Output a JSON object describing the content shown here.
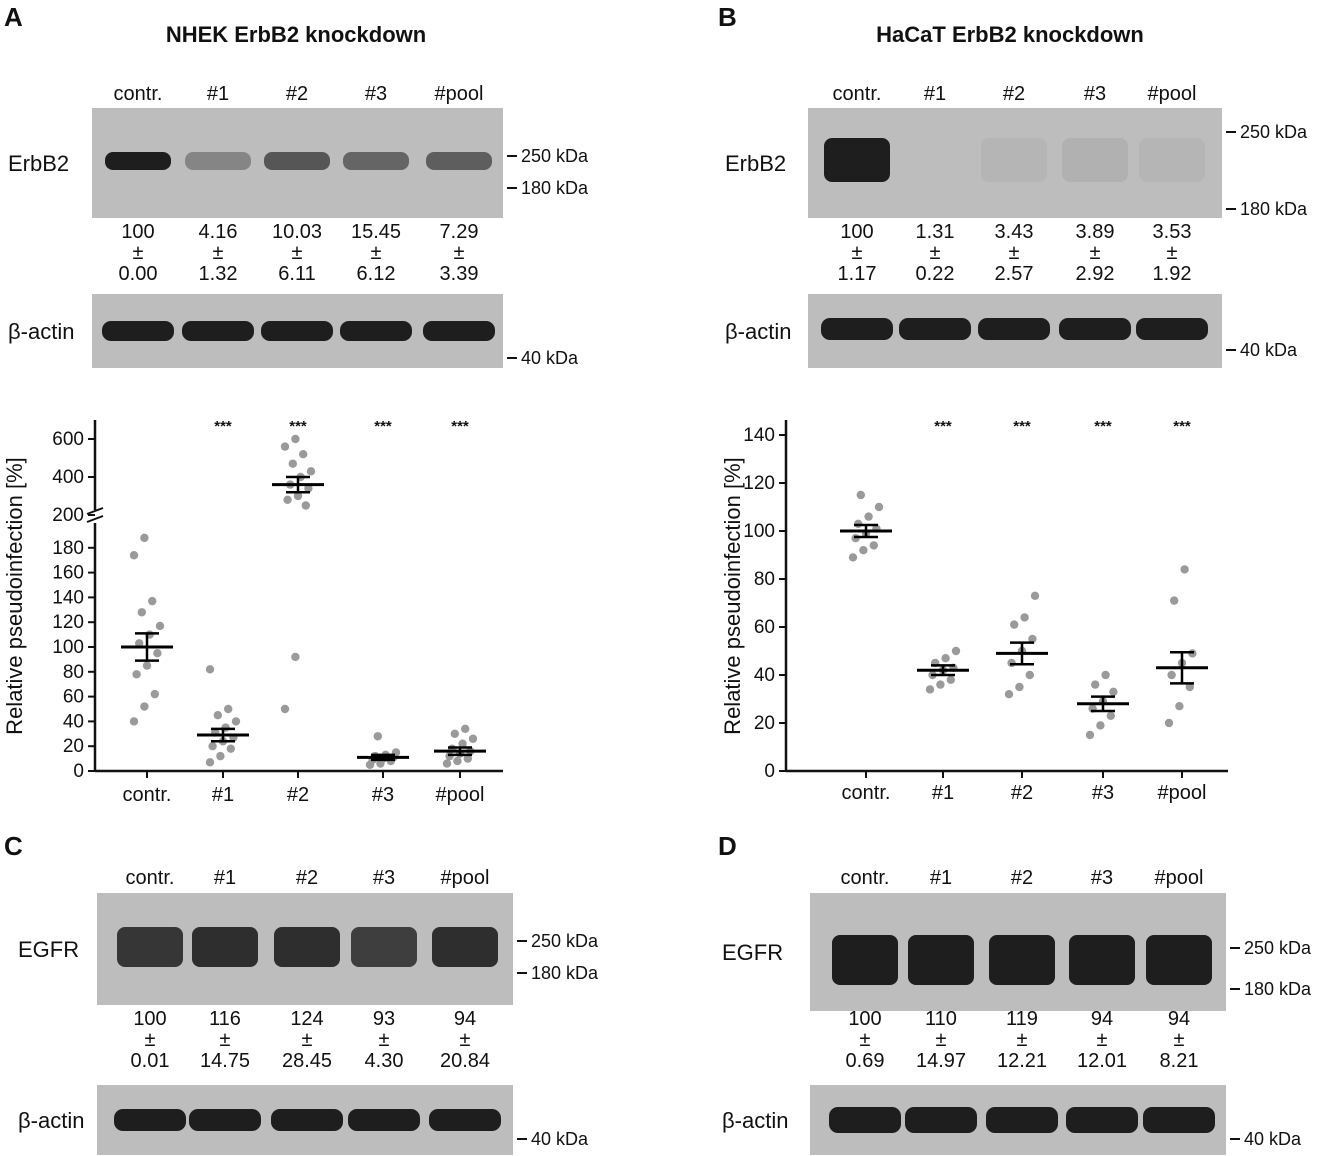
{
  "colors": {
    "blot_background": "#bdbdbd",
    "band": "#1e1e1e",
    "dot": "#9a9a9a",
    "mean_bar": "#000000",
    "text": "#111111"
  },
  "panels": {
    "A": {
      "letter": "A",
      "title": "NHEK  ErbB2 knockdown",
      "lanes": [
        "contr.",
        "#1",
        "#2",
        "#3",
        "#pool"
      ],
      "blot1": {
        "protein": "ErbB2",
        "markers": [
          "250 kDa",
          "180 kDa"
        ],
        "band_intensity": [
          1.0,
          0.35,
          0.65,
          0.55,
          0.6
        ],
        "quant": [
          {
            "mean": "100",
            "pm": "±",
            "sd": "0.00"
          },
          {
            "mean": "4.16",
            "pm": "±",
            "sd": "1.32"
          },
          {
            "mean": "10.03",
            "pm": "±",
            "sd": "6.11"
          },
          {
            "mean": "15.45",
            "pm": "±",
            "sd": "6.12"
          },
          {
            "mean": "7.29",
            "pm": "±",
            "sd": "3.39"
          }
        ]
      },
      "blot2": {
        "protein": "β-actin",
        "markers": [
          "40 kDa"
        ],
        "band_intensity": [
          1.0,
          1.0,
          1.0,
          1.0,
          1.0
        ]
      }
    },
    "B": {
      "letter": "B",
      "title": "HaCaT  ErbB2 knockdown",
      "lanes": [
        "contr.",
        "#1",
        "#2",
        "#3",
        "#pool"
      ],
      "blot1": {
        "protein": "ErbB2",
        "markers": [
          "250 kDa",
          "180 kDa"
        ],
        "band_intensity": [
          1.0,
          0.0,
          0.05,
          0.07,
          0.05
        ],
        "quant": [
          {
            "mean": "100",
            "pm": "±",
            "sd": "1.17"
          },
          {
            "mean": "1.31",
            "pm": "±",
            "sd": "0.22"
          },
          {
            "mean": "3.43",
            "pm": "±",
            "sd": "2.57"
          },
          {
            "mean": "3.89",
            "pm": "±",
            "sd": "2.92"
          },
          {
            "mean": "3.53",
            "pm": "±",
            "sd": "1.92"
          }
        ]
      },
      "blot2": {
        "protein": "β-actin",
        "markers": [
          "40 kDa"
        ],
        "band_intensity": [
          1.0,
          1.0,
          1.0,
          1.0,
          1.0
        ]
      }
    },
    "C": {
      "letter": "C",
      "lanes": [
        "contr.",
        "#1",
        "#2",
        "#3",
        "#pool"
      ],
      "blot1": {
        "protein": "EGFR",
        "markers": [
          "250 kDa",
          "180 kDa"
        ],
        "band_intensity": [
          0.85,
          0.9,
          0.9,
          0.8,
          0.9
        ],
        "quant": [
          {
            "mean": "100",
            "pm": "±",
            "sd": "0.01"
          },
          {
            "mean": "116",
            "pm": "±",
            "sd": "14.75"
          },
          {
            "mean": "124",
            "pm": "±",
            "sd": "28.45"
          },
          {
            "mean": "93",
            "pm": "±",
            "sd": "4.30"
          },
          {
            "mean": "94",
            "pm": "±",
            "sd": "20.84"
          }
        ]
      },
      "blot2": {
        "protein": "β-actin",
        "markers": [
          "40 kDa"
        ],
        "band_intensity": [
          1.0,
          1.0,
          1.0,
          1.0,
          1.0
        ]
      }
    },
    "D": {
      "letter": "D",
      "lanes": [
        "contr.",
        "#1",
        "#2",
        "#3",
        "#pool"
      ],
      "blot1": {
        "protein": "EGFR",
        "markers": [
          "250 kDa",
          "180 kDa"
        ],
        "band_intensity": [
          1.0,
          1.0,
          1.0,
          1.0,
          1.0
        ],
        "quant": [
          {
            "mean": "100",
            "pm": "±",
            "sd": "0.69"
          },
          {
            "mean": "110",
            "pm": "±",
            "sd": "14.97"
          },
          {
            "mean": "119",
            "pm": "±",
            "sd": "12.21"
          },
          {
            "mean": "94",
            "pm": "±",
            "sd": "12.01"
          },
          {
            "mean": "94",
            "pm": "±",
            "sd": "8.21"
          }
        ]
      },
      "blot2": {
        "protein": "β-actin",
        "markers": [
          "40 kDa"
        ],
        "band_intensity": [
          1.0,
          1.0,
          1.0,
          1.0,
          1.0
        ]
      }
    }
  },
  "chart_data": [
    {
      "panel": "A",
      "type": "scatter",
      "ylabel": "Relative pseudoinfection [%]",
      "categories": [
        "contr.",
        "#1",
        "#2",
        "#3",
        "#pool"
      ],
      "significance": [
        "",
        "***",
        "***",
        "***",
        "***"
      ],
      "broken_axis": true,
      "lower_ylim": [
        0,
        200
      ],
      "lower_ticks": [
        0,
        20,
        40,
        60,
        80,
        100,
        120,
        140,
        160,
        180
      ],
      "upper_ylim": [
        200,
        700
      ],
      "upper_ticks": [
        200,
        400,
        600
      ],
      "groups": [
        {
          "category": "contr.",
          "mean": 100,
          "sem": 11,
          "points": [
            40,
            52,
            62,
            78,
            85,
            95,
            103,
            110,
            117,
            128,
            137,
            174,
            188
          ]
        },
        {
          "category": "#1",
          "mean": 29,
          "sem": 5,
          "points": [
            7,
            12,
            18,
            20,
            24,
            27,
            31,
            35,
            40,
            45,
            50,
            82
          ]
        },
        {
          "category": "#2",
          "mean": 360,
          "sem": 40,
          "points": [
            50,
            92,
            250,
            280,
            300,
            340,
            360,
            400,
            430,
            470,
            520,
            560,
            600
          ]
        },
        {
          "category": "#3",
          "mean": 11,
          "sem": 2,
          "points": [
            5,
            6,
            8,
            9,
            10,
            11,
            12,
            13,
            15,
            28
          ]
        },
        {
          "category": "#pool",
          "mean": 16,
          "sem": 3,
          "points": [
            6,
            8,
            10,
            12,
            14,
            16,
            18,
            22,
            26,
            30,
            34
          ]
        }
      ]
    },
    {
      "panel": "B",
      "type": "scatter",
      "ylabel": "Relative pseudoinfection [%]",
      "categories": [
        "contr.",
        "#1",
        "#2",
        "#3",
        "#pool"
      ],
      "significance": [
        "",
        "***",
        "***",
        "***",
        "***"
      ],
      "ylim": [
        0,
        145
      ],
      "ticks": [
        0,
        20,
        40,
        60,
        80,
        100,
        120,
        140
      ],
      "groups": [
        {
          "category": "contr.",
          "mean": 100,
          "sem": 2.5,
          "points": [
            89,
            92,
            94,
            97,
            99,
            101,
            103,
            106,
            110,
            115
          ]
        },
        {
          "category": "#1",
          "mean": 42,
          "sem": 2,
          "points": [
            34,
            36,
            38,
            40,
            42,
            43,
            45,
            47,
            50
          ]
        },
        {
          "category": "#2",
          "mean": 49,
          "sem": 4.5,
          "points": [
            32,
            35,
            40,
            45,
            50,
            55,
            61,
            64,
            73
          ]
        },
        {
          "category": "#3",
          "mean": 28,
          "sem": 3,
          "points": [
            15,
            19,
            23,
            26,
            29,
            33,
            36,
            40
          ]
        },
        {
          "category": "#pool",
          "mean": 43,
          "sem": 6.5,
          "points": [
            20,
            27,
            35,
            40,
            45,
            49,
            71,
            84
          ]
        }
      ]
    }
  ]
}
